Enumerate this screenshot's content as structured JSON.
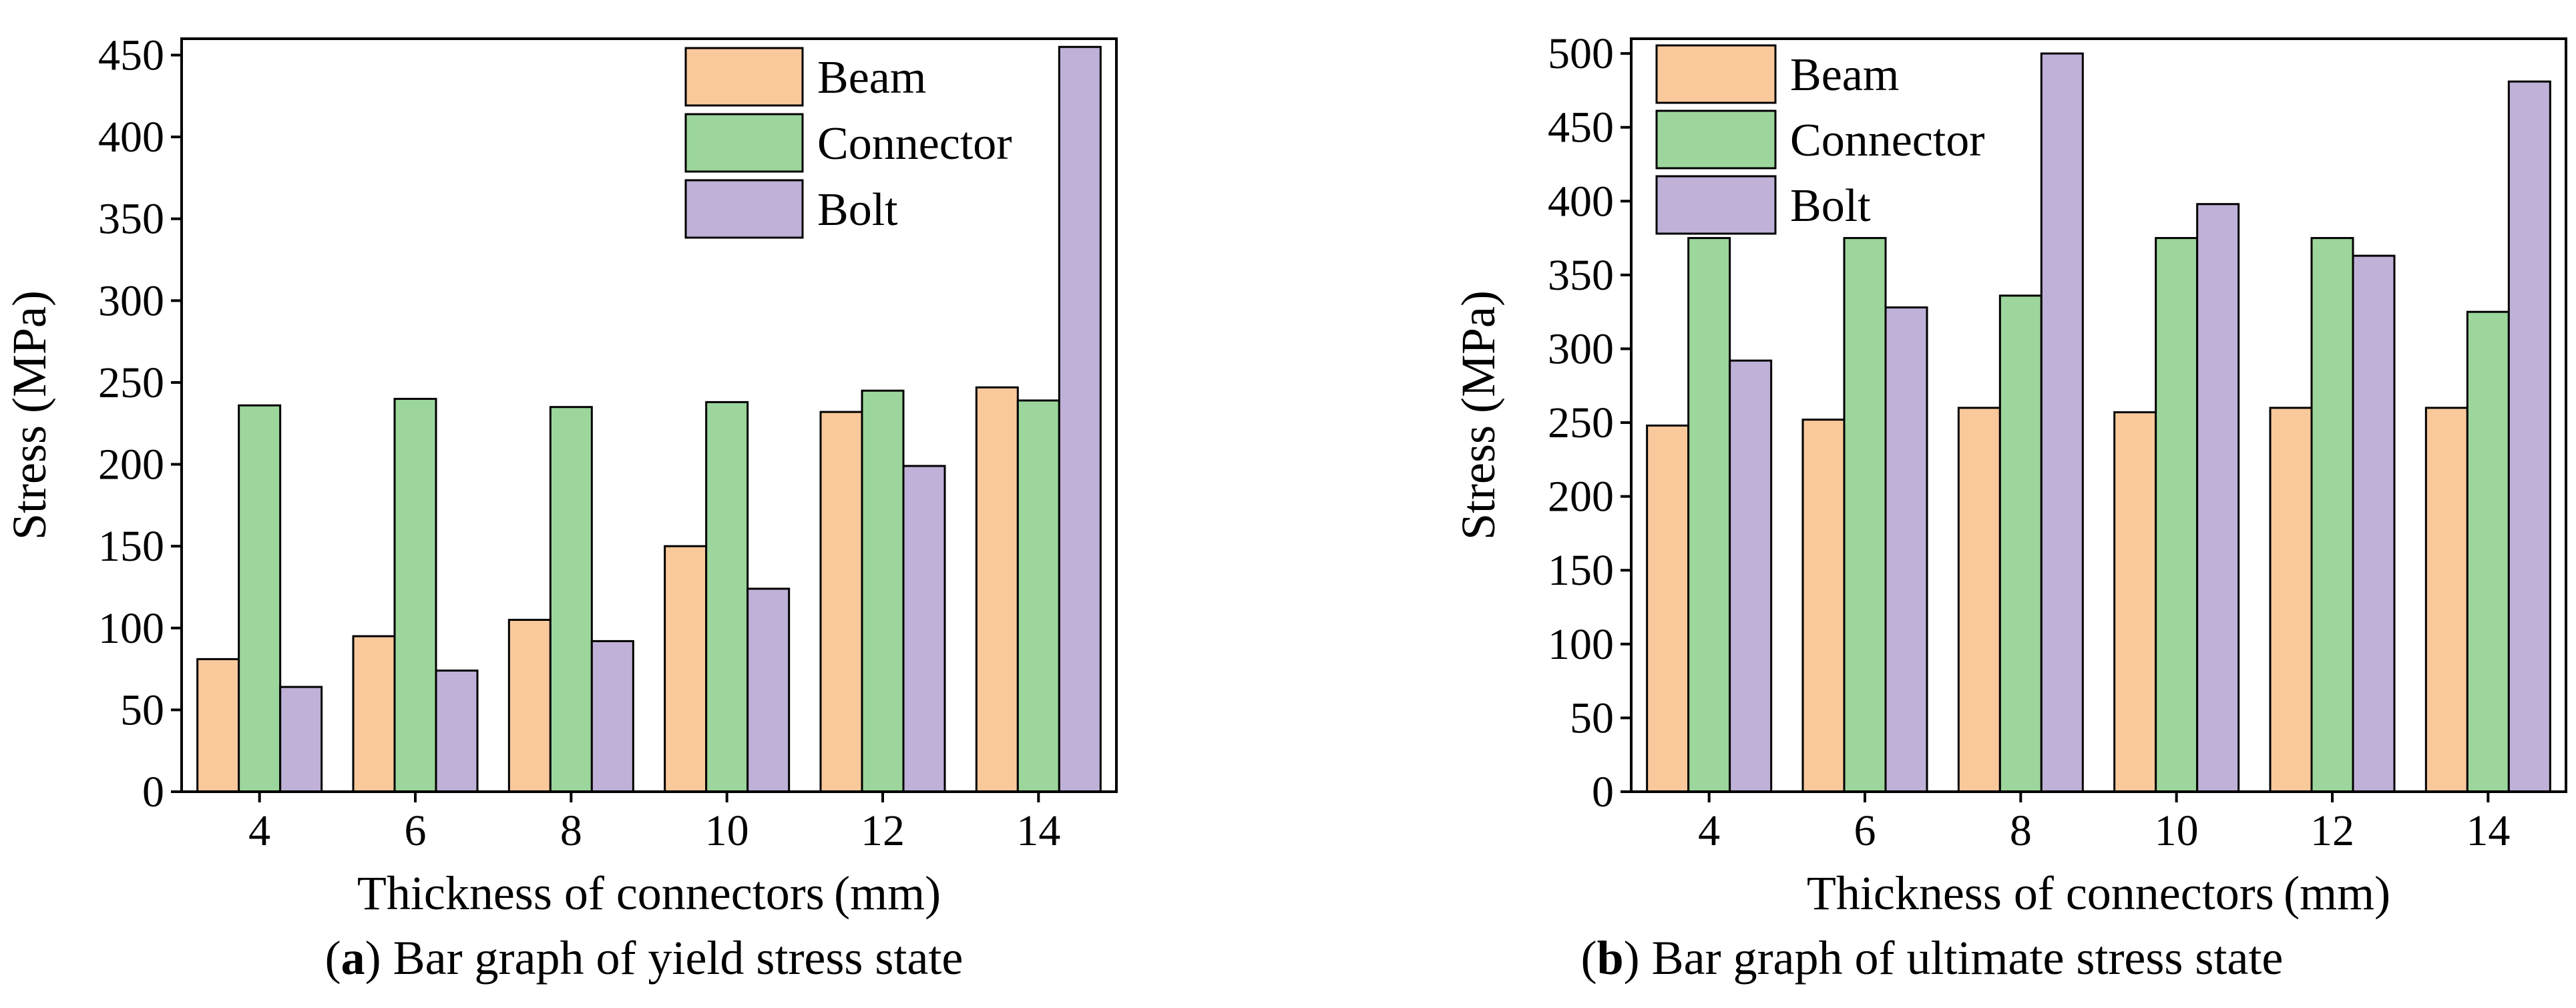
{
  "colors": {
    "beam": "#f9c99c",
    "connector": "#9cd69c",
    "bolt": "#c0b1d8",
    "frame": "#000000"
  },
  "chart_data": [
    {
      "type": "bar",
      "panel_label": "a",
      "caption": "Bar graph of yield stress state",
      "xlabel": "Thickness of connectors (mm)",
      "ylabel": "Stress (MPa)",
      "categories": [
        "4",
        "6",
        "8",
        "10",
        "12",
        "14"
      ],
      "ylim": [
        0,
        460
      ],
      "yticks": [
        0,
        50,
        100,
        150,
        200,
        250,
        300,
        350,
        400,
        450
      ],
      "legend_position": "top-right",
      "series": [
        {
          "name": "Beam",
          "color_key": "beam",
          "values": [
            81,
            95,
            105,
            150,
            232,
            247
          ]
        },
        {
          "name": "Connector",
          "color_key": "connector",
          "values": [
            236,
            240,
            235,
            238,
            245,
            239
          ]
        },
        {
          "name": "Bolt",
          "color_key": "bolt",
          "values": [
            64,
            74,
            92,
            124,
            199,
            455
          ]
        }
      ]
    },
    {
      "type": "bar",
      "panel_label": "b",
      "caption": "Bar graph of ultimate stress state",
      "xlabel": "Thickness of connectors (mm)",
      "ylabel": "Stress (MPa)",
      "categories": [
        "4",
        "6",
        "8",
        "10",
        "12",
        "14"
      ],
      "ylim": [
        0,
        510
      ],
      "yticks": [
        0,
        50,
        100,
        150,
        200,
        250,
        300,
        350,
        400,
        450,
        500
      ],
      "legend_position": "top-left",
      "series": [
        {
          "name": "Beam",
          "color_key": "beam",
          "values": [
            248,
            252,
            260,
            257,
            260,
            260
          ]
        },
        {
          "name": "Connector",
          "color_key": "connector",
          "values": [
            375,
            375,
            336,
            375,
            375,
            325
          ]
        },
        {
          "name": "Bolt",
          "color_key": "bolt",
          "values": [
            292,
            328,
            500,
            398,
            363,
            481
          ]
        }
      ]
    }
  ]
}
